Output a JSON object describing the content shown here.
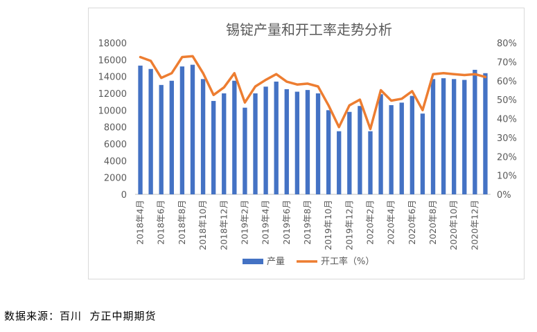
{
  "chart_data": {
    "type": "bar",
    "title": "锡锭产量和开工率走势分析",
    "categories": [
      "2018年4月",
      "2018年5月",
      "2018年6月",
      "2018年7月",
      "2018年8月",
      "2018年9月",
      "2018年10月",
      "2018年11月",
      "2018年12月",
      "2019年1月",
      "2019年2月",
      "2019年3月",
      "2019年4月",
      "2019年5月",
      "2019年6月",
      "2019年7月",
      "2019年8月",
      "2019年9月",
      "2019年10月",
      "2019年11月",
      "2019年12月",
      "2020年1月",
      "2020年2月",
      "2020年3月",
      "2020年4月",
      "2020年5月",
      "2020年6月",
      "2020年7月",
      "2020年8月",
      "2020年9月",
      "2020年10月",
      "2020年11月",
      "2020年12月",
      "2021年1月"
    ],
    "x_tick_labels": [
      "2018年4月",
      "2018年6月",
      "2018年8月",
      "2018年10月",
      "2018年12月",
      "2019年2月",
      "2019年4月",
      "2019年6月",
      "2019年8月",
      "2019年10月",
      "2019年12月",
      "2020年2月",
      "2020年4月",
      "2020年6月",
      "2020年8月",
      "2020年10月",
      "2020年12月"
    ],
    "series": [
      {
        "name": "产量",
        "type": "bar",
        "axis": "left",
        "color": "#4472c4",
        "values": [
          15300,
          14900,
          13000,
          13500,
          15200,
          15400,
          13700,
          11100,
          12000,
          13500,
          10300,
          12000,
          12800,
          13400,
          12500,
          12200,
          12400,
          12000,
          10000,
          7500,
          9800,
          10500,
          7500,
          11900,
          10600,
          10900,
          11700,
          9600,
          13700,
          13800,
          13700,
          13600,
          14800,
          14400
        ]
      },
      {
        "name": "开工率（%）",
        "type": "line",
        "axis": "right",
        "color": "#ed7d31",
        "values": [
          72.5,
          70.5,
          61.5,
          64,
          72.5,
          73,
          64,
          52.5,
          56.5,
          64,
          48.5,
          57,
          60.5,
          63.5,
          59.5,
          58,
          58.5,
          57,
          47,
          35.5,
          47,
          50,
          34.5,
          55,
          49.5,
          50.5,
          54.5,
          44.5,
          63.5,
          64,
          63.5,
          63,
          63.5,
          62
        ]
      }
    ],
    "y_left": {
      "min": 0,
      "max": 18000,
      "step": 2000,
      "tick_labels": [
        "0",
        "2000",
        "4000",
        "6000",
        "8000",
        "10000",
        "12000",
        "14000",
        "16000",
        "18000"
      ]
    },
    "y_right": {
      "min": 0,
      "max": 80,
      "step": 10,
      "tick_labels": [
        "0%",
        "10%",
        "20%",
        "30%",
        "40%",
        "50%",
        "60%",
        "70%",
        "80%"
      ]
    },
    "grid": false,
    "legend_position": "bottom"
  },
  "colors": {
    "bar": "#4472c4",
    "line": "#ed7d31",
    "axis": "#bfbfbf",
    "text": "#595959"
  },
  "source_note": "数据来源：百川  方正中期期货"
}
